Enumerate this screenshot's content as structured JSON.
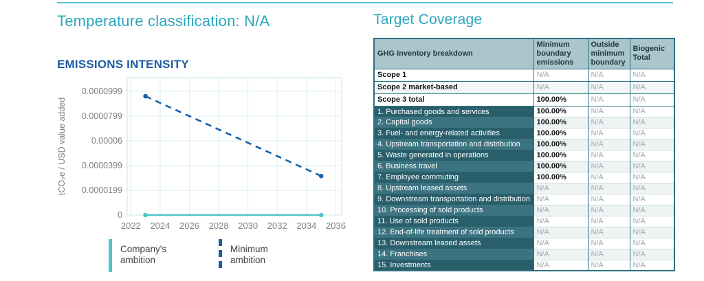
{
  "colors": {
    "heading_teal": "#2ba7bc",
    "title_blue": "#1d5da3",
    "rule_teal": "#5ec5d0",
    "grid": "#d9f0f2",
    "chart_border": "#cfeaed",
    "axis_text": "#7d8184",
    "table_border": "#2b7080",
    "table_header_bg": "#aac6cc",
    "cat_row_odd_bg": "#295f6b",
    "cat_row_even_bg": "#3c7380",
    "na_text": "#9fa9ab"
  },
  "left": {
    "temperature_title": "Temperature classification: N/A"
  },
  "chart_data": {
    "type": "line",
    "title": "EMISSIONS INTENSITY",
    "xlabel": "",
    "ylabel": "tCO₂e / USD value added",
    "grid": true,
    "legend_position": "bottom",
    "xlim": [
      2021.75,
      2036.4
    ],
    "ylim": [
      0,
      0.000111
    ],
    "xticks": [
      2022,
      2024,
      2026,
      2028,
      2030,
      2032,
      2034,
      2036
    ],
    "yticks": [
      "0",
      "0.0000199",
      "0.0000399",
      "0.00006",
      "0.0000799",
      "0.0000999"
    ],
    "series": [
      {
        "name": "Company's ambition",
        "color": "#52c3cb",
        "dash": "solid",
        "points": [
          {
            "x": 2023,
            "y": 0
          },
          {
            "x": 2035,
            "y": 0
          }
        ]
      },
      {
        "name": "Minimum ambition",
        "color": "#1561a9",
        "dash": "dashed",
        "points": [
          {
            "x": 2023,
            "y": 9.6e-05
          },
          {
            "x": 2035,
            "y": 3.15e-05
          }
        ]
      }
    ]
  },
  "table": {
    "title": "Target Coverage",
    "columns": [
      "GHG Inventory breakdown",
      "Minimum boundary emissions",
      "Outside minimum boundary",
      "Biogenic Total"
    ],
    "scope_rows": [
      {
        "label": "Scope 1",
        "values": [
          "N/A",
          "N/A",
          "N/A"
        ]
      },
      {
        "label": "Scope 2 market-based",
        "values": [
          "N/A",
          "N/A",
          "N/A"
        ]
      },
      {
        "label": "Scope 3 total",
        "values": [
          "100.00%",
          "N/A",
          "N/A"
        ]
      }
    ],
    "category_rows": [
      {
        "label": "1. Purchased goods and services",
        "values": [
          "100.00%",
          "N/A",
          "N/A"
        ]
      },
      {
        "label": "2. Capital goods",
        "values": [
          "100.00%",
          "N/A",
          "N/A"
        ]
      },
      {
        "label": "3. Fuel- and energy-related activities",
        "values": [
          "100.00%",
          "N/A",
          "N/A"
        ]
      },
      {
        "label": "4. Upstream transportation and distribution",
        "values": [
          "100.00%",
          "N/A",
          "N/A"
        ]
      },
      {
        "label": "5. Waste generated in operations",
        "values": [
          "100.00%",
          "N/A",
          "N/A"
        ]
      },
      {
        "label": "6. Business travel",
        "values": [
          "100.00%",
          "N/A",
          "N/A"
        ]
      },
      {
        "label": "7. Employee commuting",
        "values": [
          "100.00%",
          "N/A",
          "N/A"
        ]
      },
      {
        "label": "8. Upstream leased assets",
        "values": [
          "N/A",
          "N/A",
          "N/A"
        ]
      },
      {
        "label": "9. Downstream transportation and distribution",
        "values": [
          "N/A",
          "N/A",
          "N/A"
        ]
      },
      {
        "label": "10. Processing of sold products",
        "values": [
          "N/A",
          "N/A",
          "N/A"
        ]
      },
      {
        "label": "11. Use of sold products",
        "values": [
          "N/A",
          "N/A",
          "N/A"
        ]
      },
      {
        "label": "12. End-of-life treatment of sold products",
        "values": [
          "N/A",
          "N/A",
          "N/A"
        ]
      },
      {
        "label": "13. Downstream leased assets",
        "values": [
          "N/A",
          "N/A",
          "N/A"
        ]
      },
      {
        "label": "14. Franchises",
        "values": [
          "N/A",
          "N/A",
          "N/A"
        ]
      },
      {
        "label": "15. Investments",
        "values": [
          "N/A",
          "N/A",
          "N/A"
        ]
      }
    ]
  }
}
